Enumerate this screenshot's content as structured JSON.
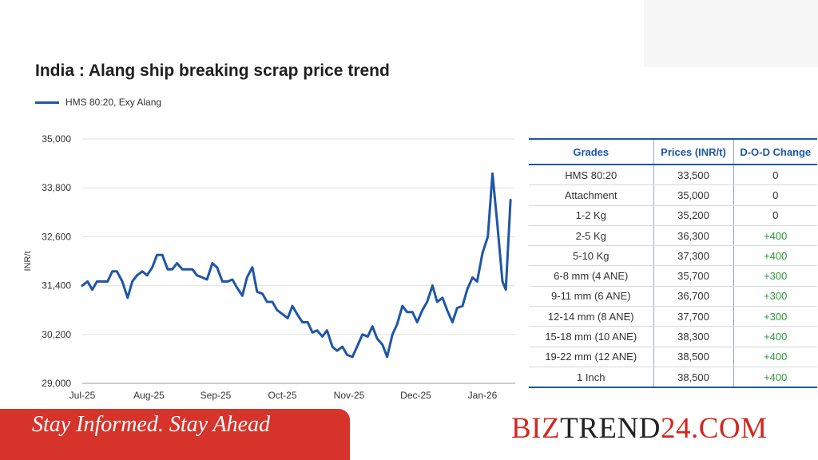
{
  "title": "India : Alang ship breaking scrap price trend",
  "banner": {
    "tagline": "Stay Informed. Stay Ahead"
  },
  "brand": {
    "part1": "BIZ",
    "part2": "TREND",
    "part3": "24.COM"
  },
  "colors": {
    "series": "#1f56a6",
    "banner": "#d6342b",
    "positive_change": "#2e9a3e"
  },
  "chart_data": {
    "type": "line",
    "title": "India : Alang ship breaking scrap price trend",
    "ylabel": "INR/t",
    "xlabel": "",
    "ylim": [
      29000,
      35000
    ],
    "yticks": [
      29000,
      30200,
      31400,
      32600,
      33800,
      35000
    ],
    "ytick_labels": [
      "29,000",
      "30,200",
      "31,400",
      "32,600",
      "33,800",
      "35,000"
    ],
    "xticks": [
      "Jul-25",
      "Aug-25",
      "Sep-25",
      "Oct-25",
      "Nov-25",
      "Dec-25",
      "Jan-26"
    ],
    "grid": true,
    "legend": "top-left",
    "series": [
      {
        "name": "HMS 80:20, Exy Alang",
        "x_month_index": [
          0,
          0.08,
          0.15,
          0.22,
          0.3,
          0.38,
          0.45,
          0.52,
          0.6,
          0.68,
          0.75,
          0.82,
          0.9,
          0.97,
          1.05,
          1.12,
          1.2,
          1.28,
          1.35,
          1.42,
          1.5,
          1.58,
          1.65,
          1.72,
          1.8,
          1.87,
          1.95,
          2.02,
          2.1,
          2.18,
          2.25,
          2.32,
          2.4,
          2.47,
          2.55,
          2.62,
          2.7,
          2.77,
          2.85,
          2.92,
          3.0,
          3.08,
          3.15,
          3.22,
          3.3,
          3.38,
          3.45,
          3.52,
          3.6,
          3.67,
          3.75,
          3.82,
          3.9,
          3.97,
          4.05,
          4.12,
          4.2,
          4.28,
          4.35,
          4.42,
          4.5,
          4.57,
          4.65,
          4.72,
          4.8,
          4.87,
          4.95,
          5.02,
          5.1,
          5.17,
          5.25,
          5.32,
          5.4,
          5.47,
          5.55,
          5.62,
          5.7,
          5.77,
          5.85,
          5.92,
          6.0,
          6.08,
          6.15,
          6.22,
          6.3,
          6.35,
          6.42
        ],
        "values": [
          31400,
          31500,
          31300,
          31500,
          31500,
          31500,
          31750,
          31750,
          31500,
          31100,
          31500,
          31650,
          31750,
          31650,
          31850,
          32150,
          32150,
          31800,
          31800,
          31950,
          31800,
          31800,
          31800,
          31650,
          31600,
          31550,
          31950,
          31850,
          31500,
          31500,
          31550,
          31350,
          31150,
          31600,
          31850,
          31250,
          31200,
          31000,
          31000,
          30800,
          30700,
          30600,
          30900,
          30700,
          30500,
          30500,
          30250,
          30300,
          30150,
          30300,
          29900,
          29800,
          29900,
          29700,
          29650,
          29900,
          30200,
          30150,
          30400,
          30100,
          29950,
          29650,
          30200,
          30450,
          30900,
          30750,
          30750,
          30500,
          30800,
          31000,
          31400,
          31000,
          31100,
          30800,
          30500,
          30850,
          30900,
          31300,
          31600,
          31500,
          32200,
          32600,
          34150,
          32950,
          31500,
          31300,
          33500
        ]
      }
    ]
  },
  "table": {
    "headers": [
      "Grades",
      "Prices (INR/t)",
      "D-O-D Change"
    ],
    "rows": [
      [
        "HMS 80:20",
        "33,500",
        "0"
      ],
      [
        "Attachment",
        "35,000",
        "0"
      ],
      [
        "1-2 Kg",
        "35,200",
        "0"
      ],
      [
        "2-5 Kg",
        "36,300",
        "+400"
      ],
      [
        "5-10 Kg",
        "37,300",
        "+400"
      ],
      [
        "6-8 mm (4 ANE)",
        "35,700",
        "+300"
      ],
      [
        "9-11 mm (6 ANE)",
        "36,700",
        "+300"
      ],
      [
        "12-14 mm (8 ANE)",
        "37,700",
        "+300"
      ],
      [
        "15-18 mm (10 ANE)",
        "38,300",
        "+400"
      ],
      [
        "19-22 mm (12 ANE)",
        "38,500",
        "+400"
      ],
      [
        "1 Inch",
        "38,500",
        "+400"
      ]
    ]
  }
}
